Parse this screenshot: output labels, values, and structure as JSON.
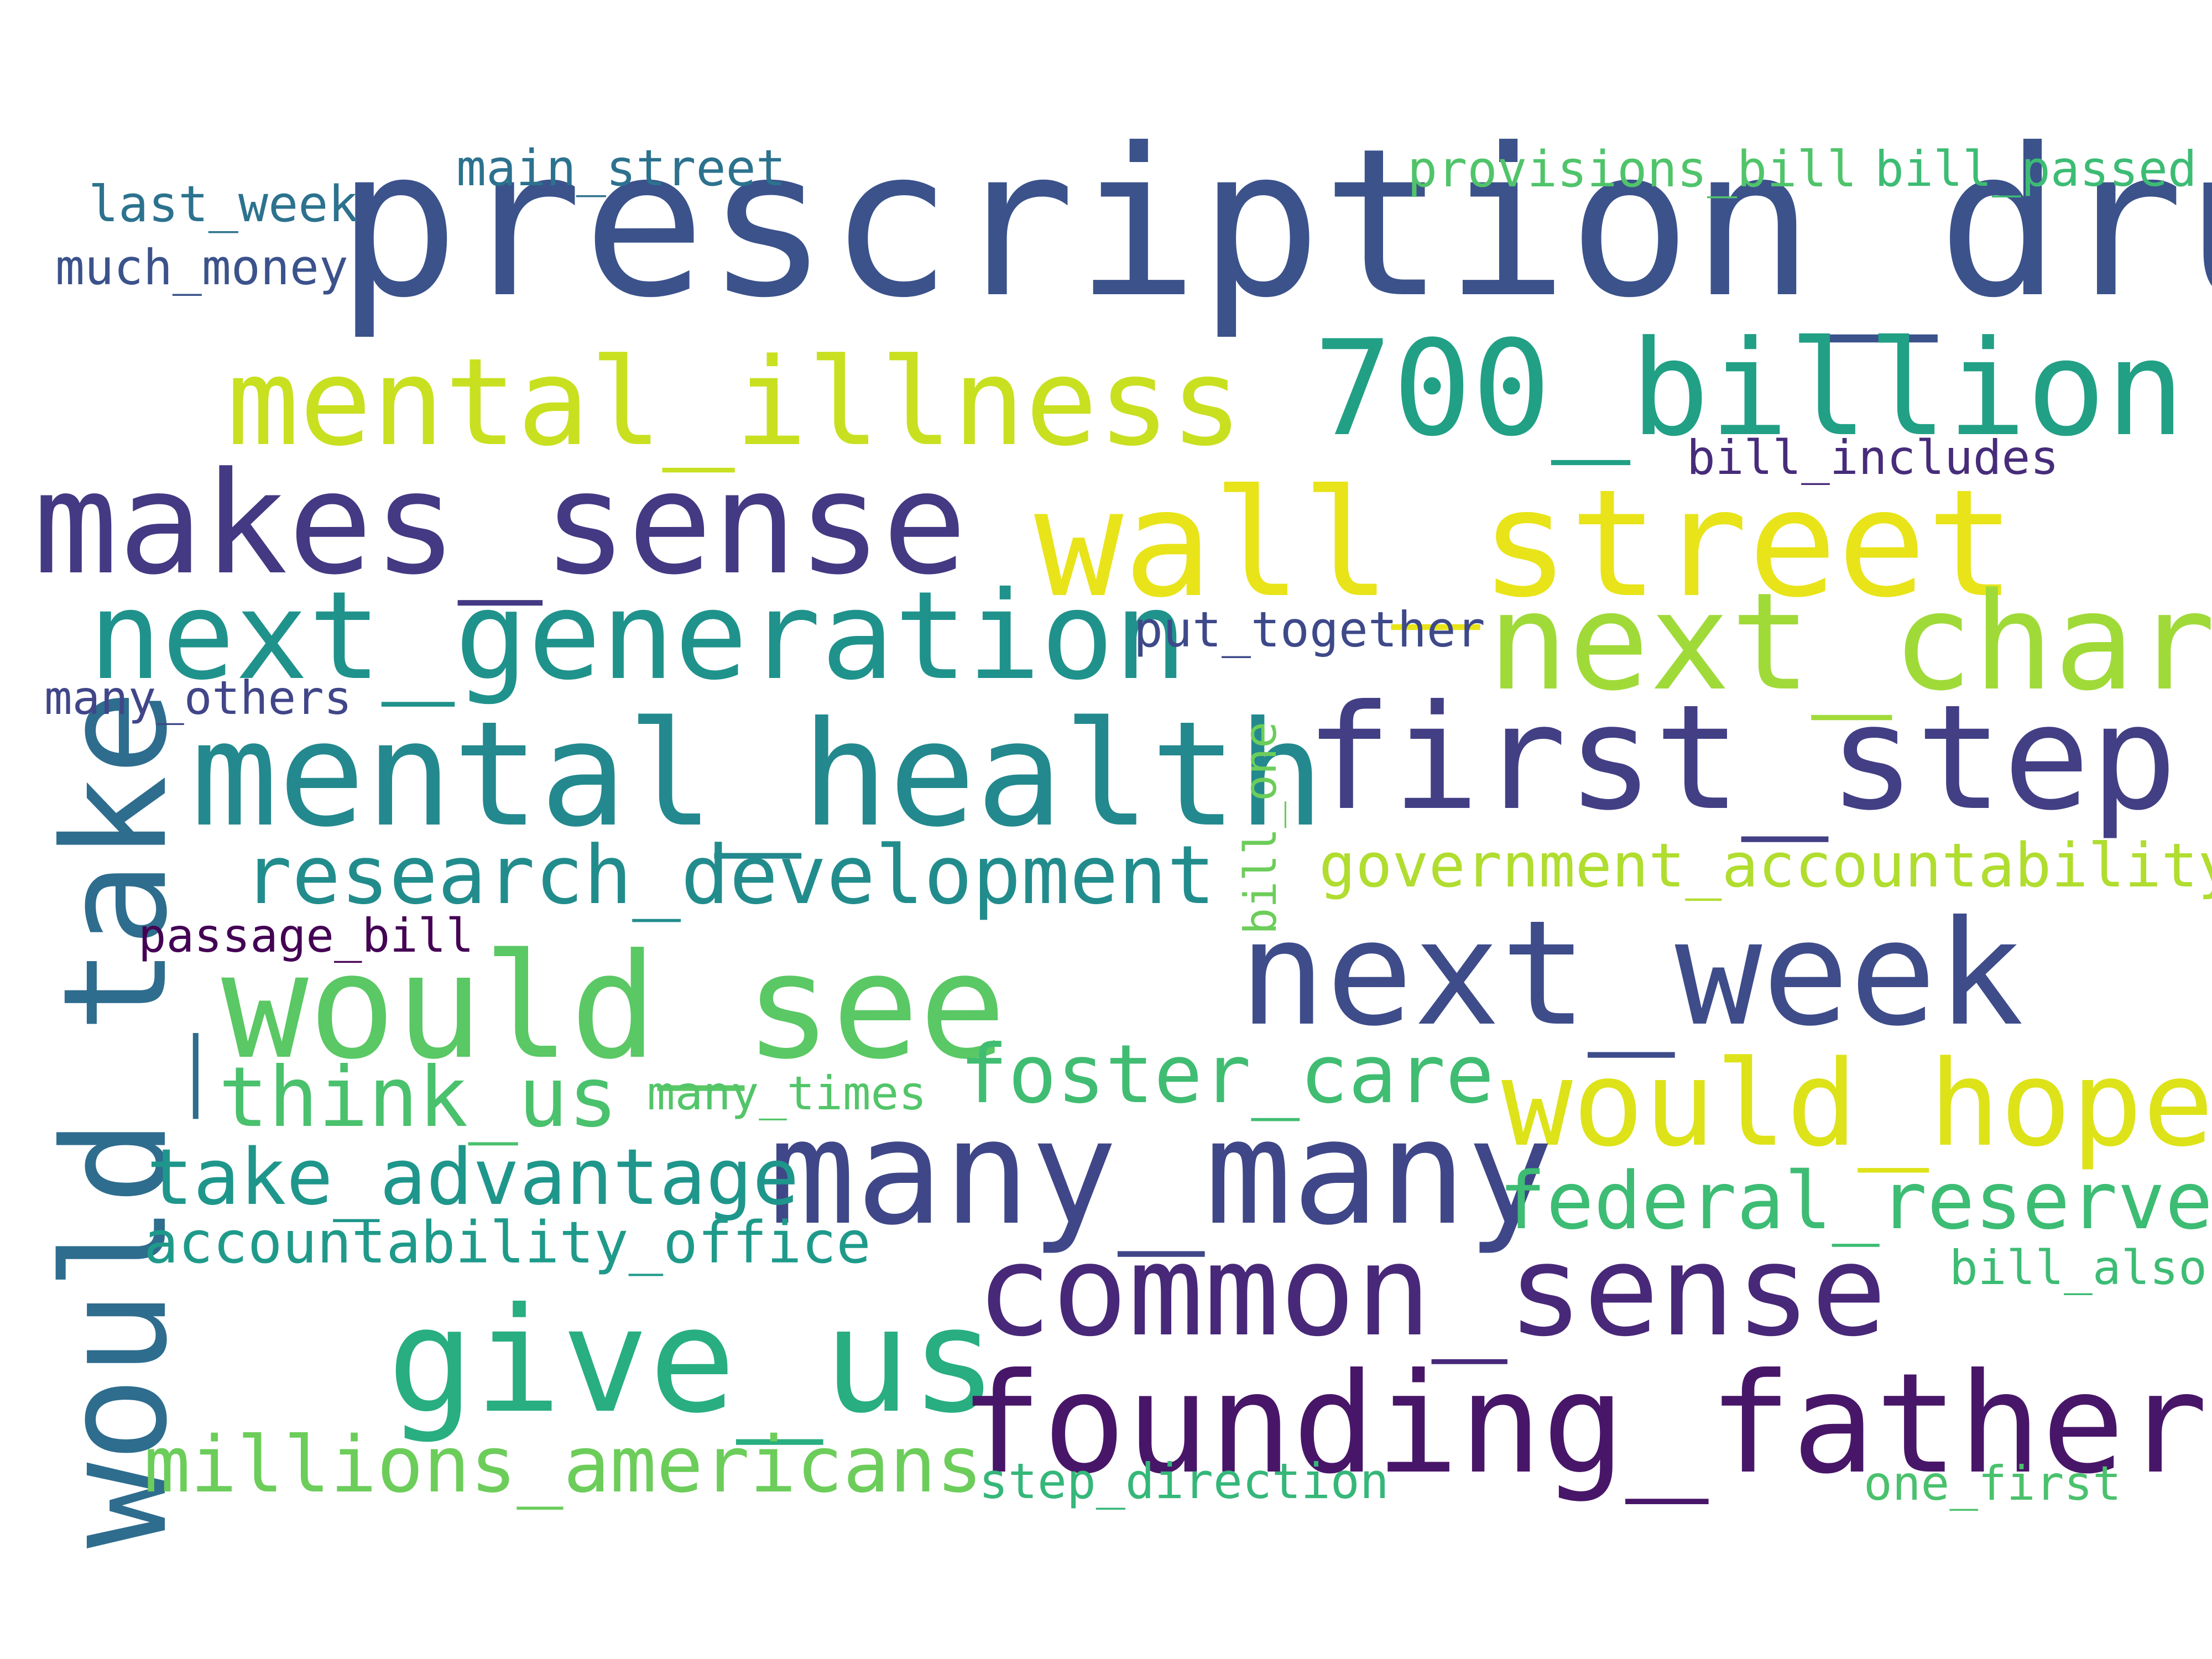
{
  "words": {
    "prescription_drug": {
      "text": "prescription_drug",
      "color": "#3b528b"
    },
    "mental_illness": {
      "text": "mental_illness",
      "color": "#c8e020"
    },
    "billion_700": {
      "text": "700_billion",
      "color": "#21a085"
    },
    "makes_sense": {
      "text": "makes_sense",
      "color": "#443983"
    },
    "wall_street": {
      "text": "wall_street",
      "color": "#e8e419"
    },
    "next_generation": {
      "text": "next_generation",
      "color": "#20928c"
    },
    "next_chart": {
      "text": "next_chart",
      "color": "#a0da39"
    },
    "mental_health": {
      "text": "mental_health",
      "color": "#23898e"
    },
    "first_step": {
      "text": "first_step",
      "color": "#423f85"
    },
    "would_take": {
      "text": "would_take",
      "color": "#2e6d8e"
    },
    "research_development": {
      "text": "research_development",
      "color": "#228c8d"
    },
    "government_accountability": {
      "text": "government_accountability",
      "color": "#b0dd2f"
    },
    "would_see": {
      "text": "would_see",
      "color": "#5ac864"
    },
    "next_week": {
      "text": "next_week",
      "color": "#3e4c8a"
    },
    "think_us": {
      "text": "think_us",
      "color": "#4ac16d"
    },
    "foster_care": {
      "text": "foster_care",
      "color": "#40bd72"
    },
    "would_hope": {
      "text": "would_hope",
      "color": "#dde318"
    },
    "many_many": {
      "text": "many_many",
      "color": "#3f4788"
    },
    "take_advantage": {
      "text": "take_advantage",
      "color": "#1f968b"
    },
    "federal_reserve": {
      "text": "federal_reserve",
      "color": "#3dbc74"
    },
    "accountability_office": {
      "text": "accountability_office",
      "color": "#1f9a8a"
    },
    "common_sense": {
      "text": "common_sense",
      "color": "#482878"
    },
    "give_us": {
      "text": "give_us",
      "color": "#28ae80"
    },
    "founding_fathers": {
      "text": "founding_fathers",
      "color": "#481668"
    },
    "millions_americans": {
      "text": "millions_americans",
      "color": "#6ccd5a"
    },
    "step_direction": {
      "text": "step_direction",
      "color": "#35b779"
    },
    "one_first": {
      "text": "one_first",
      "color": "#4ac16d"
    },
    "bill_also": {
      "text": "bill_also",
      "color": "#3dbc74"
    },
    "many_times": {
      "text": "many_times",
      "color": "#52c569"
    },
    "passage_bill": {
      "text": "passage_bill",
      "color": "#440154"
    },
    "many_others": {
      "text": "many_others",
      "color": "#404688"
    },
    "put_together": {
      "text": "put_together",
      "color": "#3e4989"
    },
    "bill_one": {
      "text": "bill_one",
      "color": "#6ccd5a"
    },
    "bill_includes": {
      "text": "bill_includes",
      "color": "#472c7a"
    },
    "main_street": {
      "text": "main_street",
      "color": "#2c728e"
    },
    "last_week": {
      "text": "last_week",
      "color": "#2c728e"
    },
    "much_money": {
      "text": "much_money",
      "color": "#3b528b"
    },
    "provisions_bill": {
      "text": "provisions_bill",
      "color": "#50c46a"
    },
    "bill_passed": {
      "text": "bill_passed",
      "color": "#3dbc74"
    }
  }
}
